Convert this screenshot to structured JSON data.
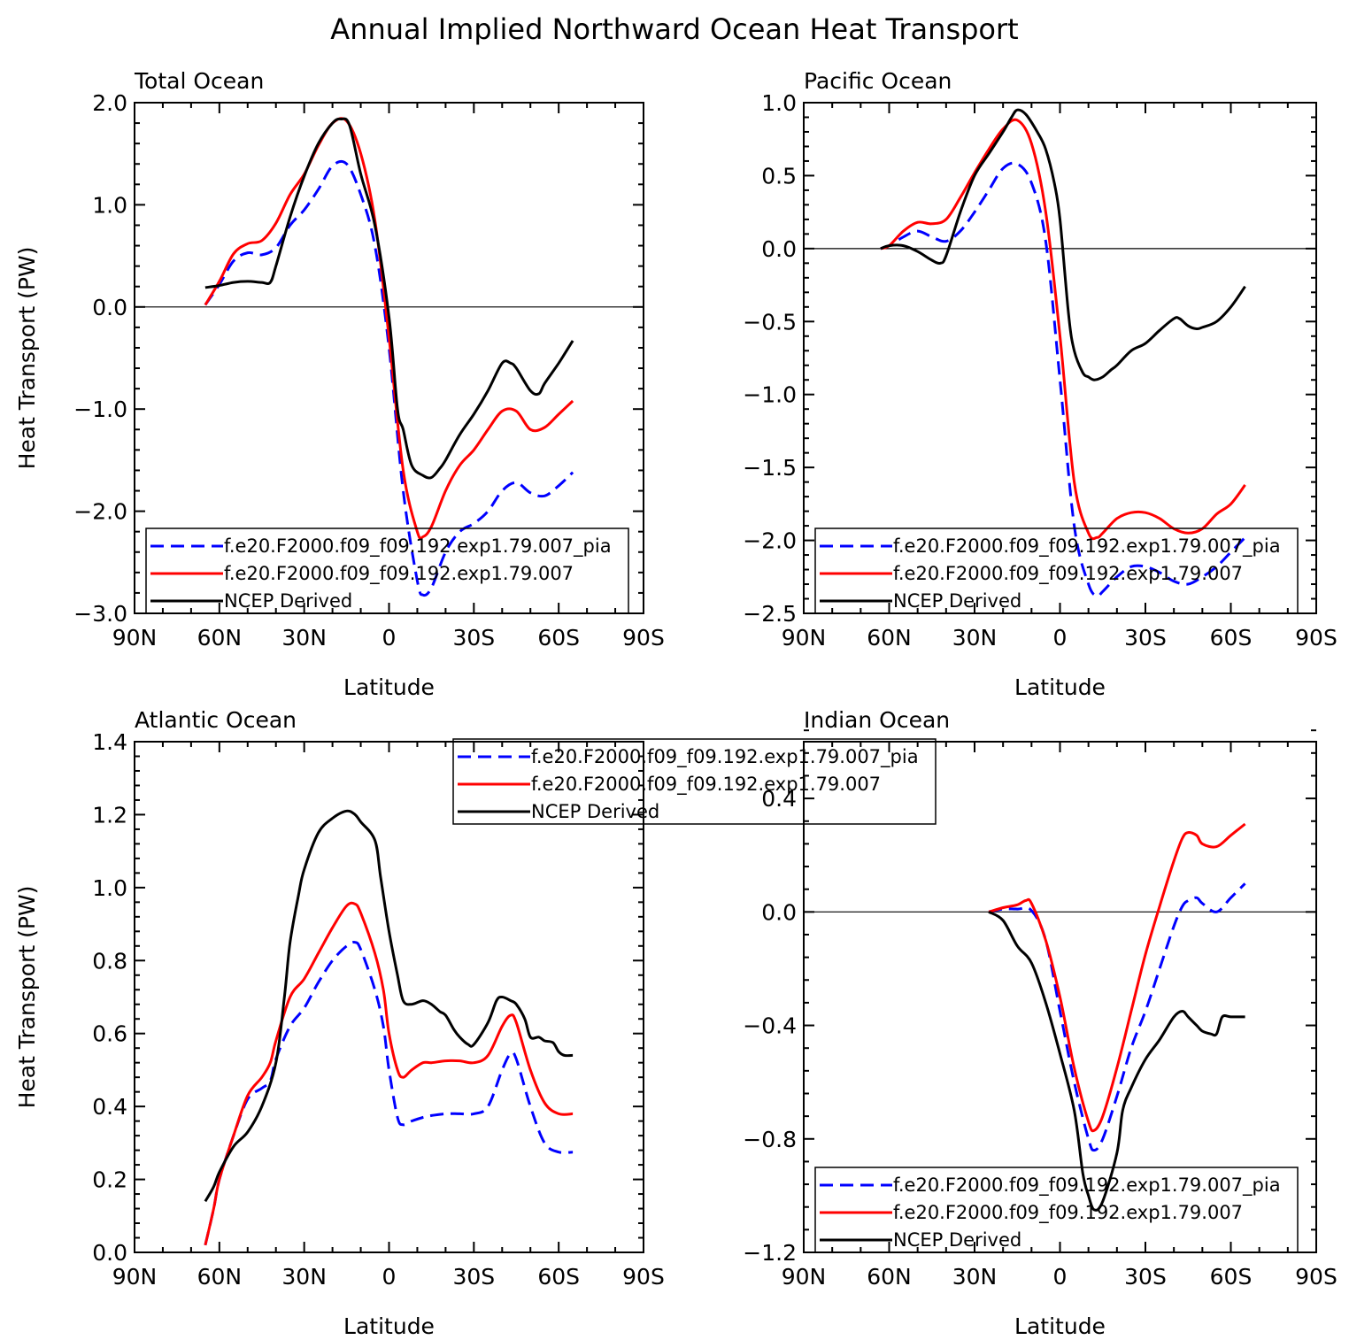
{
  "figure": {
    "title": "Annual Implied Northward Ocean Heat Transport"
  },
  "chart_data": [
    {
      "type": "line",
      "title": "Total Ocean",
      "xlabel": "Latitude",
      "ylabel": "Heat Transport (PW)",
      "xlim": [
        -90,
        90
      ],
      "ylim": [
        -3.0,
        2.0
      ],
      "xticks": [
        -90,
        -60,
        -30,
        0,
        30,
        60,
        90
      ],
      "xtick_labels": [
        "90N",
        "60N",
        "30N",
        "0",
        "30S",
        "60S",
        "90S"
      ],
      "yticks": [
        -3.0,
        -2.0,
        -1.0,
        0.0,
        1.0,
        2.0
      ],
      "ytick_labels": [
        "−3.0",
        "−2.0",
        "−1.0",
        "0.0",
        "1.0",
        "2.0"
      ],
      "legend_position": "bottom-left",
      "series": [
        {
          "name": "f.e20.F2000.f09_f09.192.exp1.79.007_pia",
          "color": "#0000ff",
          "dash": "dashed",
          "x": [
            -65,
            -60,
            -55,
            -50,
            -45,
            -40,
            -35,
            -30,
            -25,
            -20,
            -15,
            -10,
            -5,
            0,
            5,
            10,
            12,
            15,
            20,
            25,
            30,
            35,
            40,
            45,
            50,
            55,
            60,
            65
          ],
          "y": [
            0.02,
            0.22,
            0.45,
            0.53,
            0.51,
            0.58,
            0.8,
            0.95,
            1.15,
            1.38,
            1.4,
            1.1,
            0.6,
            -0.4,
            -1.8,
            -2.68,
            -2.82,
            -2.75,
            -2.4,
            -2.2,
            -2.12,
            -2.0,
            -1.8,
            -1.72,
            -1.82,
            -1.85,
            -1.75,
            -1.62
          ]
        },
        {
          "name": "f.e20.F2000.f09_f09.192.exp1.79.007",
          "color": "#ff0000",
          "dash": "solid",
          "x": [
            -65,
            -60,
            -55,
            -50,
            -45,
            -40,
            -35,
            -30,
            -25,
            -20,
            -15,
            -10,
            -5,
            0,
            5,
            10,
            12,
            15,
            20,
            25,
            30,
            35,
            40,
            45,
            50,
            55,
            60,
            65
          ],
          "y": [
            0.02,
            0.25,
            0.52,
            0.62,
            0.65,
            0.82,
            1.1,
            1.3,
            1.58,
            1.8,
            1.82,
            1.5,
            0.85,
            -0.3,
            -1.6,
            -2.2,
            -2.25,
            -2.15,
            -1.8,
            -1.55,
            -1.4,
            -1.2,
            -1.02,
            -1.02,
            -1.2,
            -1.18,
            -1.05,
            -0.92
          ]
        },
        {
          "name": "NCEP Derived",
          "color": "#000000",
          "dash": "solid",
          "x": [
            -65,
            -60,
            -55,
            -50,
            -45,
            -42,
            -40,
            -35,
            -30,
            -25,
            -20,
            -17,
            -14,
            -10,
            -5,
            0,
            3,
            5,
            8,
            12,
            15,
            18,
            20,
            25,
            30,
            35,
            40,
            43,
            45,
            50,
            53,
            55,
            60,
            65
          ],
          "y": [
            0.19,
            0.21,
            0.24,
            0.25,
            0.24,
            0.24,
            0.4,
            0.88,
            1.28,
            1.6,
            1.8,
            1.84,
            1.78,
            1.3,
            0.8,
            -0.1,
            -1.0,
            -1.2,
            -1.55,
            -1.65,
            -1.67,
            -1.58,
            -1.5,
            -1.25,
            -1.05,
            -0.82,
            -0.55,
            -0.55,
            -0.6,
            -0.82,
            -0.85,
            -0.75,
            -0.55,
            -0.33
          ]
        }
      ]
    },
    {
      "type": "line",
      "title": "Pacific Ocean",
      "xlabel": "Latitude",
      "ylabel": "",
      "xlim": [
        -90,
        90
      ],
      "ylim": [
        -2.5,
        1.0
      ],
      "xticks": [
        -90,
        -60,
        -30,
        0,
        30,
        60,
        90
      ],
      "xtick_labels": [
        "90N",
        "60N",
        "30N",
        "0",
        "30S",
        "60S",
        "90S"
      ],
      "yticks": [
        -2.5,
        -2.0,
        -1.5,
        -1.0,
        -0.5,
        0.0,
        0.5,
        1.0
      ],
      "ytick_labels": [
        "−2.5",
        "−2.0",
        "−1.5",
        "−1.0",
        "−0.5",
        "0.0",
        "0.5",
        "1.0"
      ],
      "legend_position": "bottom-left",
      "series": [
        {
          "name": "f.e20.F2000.f09_f09.192.exp1.79.007_pia",
          "color": "#0000ff",
          "dash": "dashed",
          "x": [
            -63,
            -60,
            -55,
            -50,
            -45,
            -40,
            -35,
            -30,
            -25,
            -20,
            -15,
            -10,
            -5,
            0,
            5,
            10,
            13,
            15,
            20,
            25,
            30,
            35,
            40,
            45,
            50,
            55,
            60,
            65
          ],
          "y": [
            0.0,
            0.02,
            0.08,
            0.12,
            0.08,
            0.05,
            0.12,
            0.25,
            0.4,
            0.55,
            0.58,
            0.45,
            0.05,
            -0.9,
            -1.9,
            -2.3,
            -2.38,
            -2.35,
            -2.25,
            -2.18,
            -2.18,
            -2.22,
            -2.28,
            -2.3,
            -2.25,
            -2.18,
            -2.08,
            -1.98
          ]
        },
        {
          "name": "f.e20.F2000.f09_f09.192.exp1.79.007",
          "color": "#ff0000",
          "dash": "solid",
          "x": [
            -63,
            -60,
            -55,
            -50,
            -45,
            -40,
            -35,
            -30,
            -25,
            -20,
            -15,
            -10,
            -5,
            0,
            5,
            10,
            13,
            15,
            20,
            25,
            30,
            35,
            40,
            45,
            50,
            55,
            60,
            65
          ],
          "y": [
            0.0,
            0.02,
            0.12,
            0.18,
            0.17,
            0.2,
            0.35,
            0.52,
            0.68,
            0.82,
            0.88,
            0.72,
            0.25,
            -0.6,
            -1.6,
            -1.95,
            -1.98,
            -1.95,
            -1.85,
            -1.81,
            -1.81,
            -1.85,
            -1.92,
            -1.95,
            -1.92,
            -1.82,
            -1.75,
            -1.62
          ]
        },
        {
          "name": "NCEP Derived",
          "color": "#000000",
          "dash": "solid",
          "x": [
            -63,
            -60,
            -55,
            -50,
            -45,
            -42,
            -40,
            -35,
            -30,
            -25,
            -20,
            -17,
            -15,
            -12,
            -8,
            -5,
            -2,
            0,
            3,
            5,
            8,
            10,
            12,
            15,
            18,
            20,
            25,
            30,
            35,
            40,
            42,
            45,
            48,
            50,
            55,
            60,
            65
          ],
          "y": [
            0.0,
            0.02,
            0.02,
            -0.02,
            -0.08,
            -0.1,
            -0.05,
            0.25,
            0.5,
            0.65,
            0.8,
            0.9,
            0.95,
            0.92,
            0.8,
            0.68,
            0.45,
            0.2,
            -0.45,
            -0.7,
            -0.85,
            -0.88,
            -0.9,
            -0.88,
            -0.83,
            -0.8,
            -0.7,
            -0.65,
            -0.56,
            -0.48,
            -0.48,
            -0.53,
            -0.55,
            -0.54,
            -0.5,
            -0.4,
            -0.26
          ]
        }
      ]
    },
    {
      "type": "line",
      "title": "Atlantic Ocean",
      "xlabel": "Latitude",
      "ylabel": "Heat Transport (PW)",
      "xlim": [
        -90,
        90
      ],
      "ylim": [
        0.0,
        1.4
      ],
      "xticks": [
        -90,
        -60,
        -30,
        0,
        30,
        60,
        90
      ],
      "xtick_labels": [
        "90N",
        "60N",
        "30N",
        "0",
        "30S",
        "60S",
        "90S"
      ],
      "yticks": [
        0.0,
        0.2,
        0.4,
        0.6,
        0.8,
        1.0,
        1.2,
        1.4
      ],
      "ytick_labels": [
        "0.0",
        "0.2",
        "0.4",
        "0.6",
        "0.8",
        "1.0",
        "1.2",
        "1.4"
      ],
      "legend_position": "top-right",
      "series": [
        {
          "name": "f.e20.F2000.f09_f09.192.exp1.79.007_pia",
          "color": "#0000ff",
          "dash": "dashed",
          "x": [
            -65,
            -62,
            -60,
            -55,
            -50,
            -45,
            -42,
            -40,
            -35,
            -30,
            -25,
            -20,
            -15,
            -12,
            -10,
            -5,
            -2,
            0,
            3,
            5,
            8,
            12,
            15,
            20,
            25,
            30,
            35,
            40,
            43,
            45,
            50,
            55,
            60,
            65
          ],
          "y": [
            0.02,
            0.12,
            0.2,
            0.32,
            0.42,
            0.45,
            0.47,
            0.53,
            0.62,
            0.67,
            0.74,
            0.8,
            0.84,
            0.85,
            0.83,
            0.72,
            0.62,
            0.5,
            0.37,
            0.35,
            0.36,
            0.37,
            0.375,
            0.38,
            0.38,
            0.38,
            0.4,
            0.5,
            0.545,
            0.53,
            0.4,
            0.3,
            0.275,
            0.275
          ]
        },
        {
          "name": "f.e20.F2000.f09_f09.192.exp1.79.007",
          "color": "#ff0000",
          "dash": "solid",
          "x": [
            -65,
            -62,
            -60,
            -55,
            -50,
            -45,
            -42,
            -40,
            -35,
            -30,
            -25,
            -20,
            -15,
            -12,
            -10,
            -5,
            -2,
            0,
            3,
            5,
            8,
            12,
            15,
            20,
            25,
            30,
            35,
            40,
            43,
            45,
            50,
            55,
            60,
            65
          ],
          "y": [
            0.02,
            0.12,
            0.2,
            0.32,
            0.43,
            0.48,
            0.52,
            0.58,
            0.7,
            0.75,
            0.82,
            0.89,
            0.95,
            0.955,
            0.93,
            0.82,
            0.72,
            0.6,
            0.5,
            0.48,
            0.5,
            0.52,
            0.52,
            0.525,
            0.525,
            0.52,
            0.54,
            0.62,
            0.65,
            0.63,
            0.5,
            0.41,
            0.38,
            0.38
          ]
        },
        {
          "name": "NCEP Derived",
          "color": "#000000",
          "dash": "solid",
          "x": [
            -65,
            -62,
            -60,
            -55,
            -50,
            -45,
            -40,
            -37,
            -35,
            -32,
            -30,
            -25,
            -20,
            -15,
            -12,
            -10,
            -5,
            -3,
            0,
            3,
            5,
            8,
            12,
            15,
            18,
            20,
            23,
            25,
            28,
            30,
            35,
            38,
            40,
            43,
            45,
            48,
            50,
            53,
            55,
            58,
            60,
            62,
            65
          ],
          "y": [
            0.14,
            0.18,
            0.22,
            0.29,
            0.33,
            0.4,
            0.52,
            0.7,
            0.85,
            0.98,
            1.05,
            1.15,
            1.19,
            1.21,
            1.2,
            1.18,
            1.13,
            1.03,
            0.88,
            0.76,
            0.69,
            0.68,
            0.69,
            0.68,
            0.66,
            0.65,
            0.61,
            0.59,
            0.57,
            0.57,
            0.63,
            0.69,
            0.7,
            0.69,
            0.68,
            0.64,
            0.59,
            0.59,
            0.58,
            0.575,
            0.55,
            0.54,
            0.54
          ]
        }
      ]
    },
    {
      "type": "line",
      "title": "Indian Ocean",
      "xlabel": "Latitude",
      "ylabel": "",
      "xlim": [
        -90,
        90
      ],
      "ylim": [
        -1.2,
        0.6
      ],
      "xticks": [
        -90,
        -60,
        -30,
        0,
        30,
        60,
        90
      ],
      "xtick_labels": [
        "90N",
        "60N",
        "30N",
        "0",
        "30S",
        "60S",
        "90S"
      ],
      "yticks": [
        -1.2,
        -0.8,
        -0.4,
        0.0,
        0.4
      ],
      "ytick_labels": [
        "−1.2",
        "−0.8",
        "−0.4",
        "0.0",
        "0.4"
      ],
      "legend_position": "bottom-left",
      "series": [
        {
          "name": "f.e20.F2000.f09_f09.192.exp1.79.007_pia",
          "color": "#0000ff",
          "dash": "dashed",
          "x": [
            -25,
            -20,
            -15,
            -10,
            -5,
            0,
            5,
            10,
            12,
            15,
            20,
            25,
            30,
            35,
            40,
            43,
            45,
            48,
            50,
            55,
            60,
            65
          ],
          "y": [
            0.0,
            0.01,
            0.01,
            0.005,
            -0.1,
            -0.35,
            -0.6,
            -0.8,
            -0.84,
            -0.8,
            -0.65,
            -0.48,
            -0.35,
            -0.2,
            -0.05,
            0.02,
            0.04,
            0.05,
            0.03,
            0.0,
            0.05,
            0.1
          ]
        },
        {
          "name": "f.e20.F2000.f09_f09.192.exp1.79.007",
          "color": "#ff0000",
          "dash": "solid",
          "x": [
            -25,
            -20,
            -15,
            -12,
            -10,
            -5,
            0,
            5,
            10,
            12,
            15,
            20,
            25,
            30,
            35,
            40,
            43,
            45,
            48,
            50,
            55,
            60,
            65
          ],
          "y": [
            0.0,
            0.015,
            0.025,
            0.04,
            0.03,
            -0.1,
            -0.3,
            -0.55,
            -0.74,
            -0.77,
            -0.72,
            -0.55,
            -0.35,
            -0.15,
            0.02,
            0.18,
            0.26,
            0.28,
            0.27,
            0.24,
            0.23,
            0.27,
            0.31
          ]
        },
        {
          "name": "NCEP Derived",
          "color": "#000000",
          "dash": "solid",
          "x": [
            -25,
            -20,
            -15,
            -10,
            -5,
            0,
            5,
            8,
            10,
            12,
            15,
            20,
            22,
            25,
            30,
            35,
            40,
            43,
            45,
            48,
            50,
            53,
            55,
            57,
            60,
            65
          ],
          "y": [
            0.0,
            -0.03,
            -0.12,
            -0.18,
            -0.32,
            -0.5,
            -0.7,
            -0.92,
            -1.0,
            -1.05,
            -1.02,
            -0.85,
            -0.7,
            -0.62,
            -0.52,
            -0.45,
            -0.37,
            -0.35,
            -0.37,
            -0.4,
            -0.42,
            -0.43,
            -0.43,
            -0.37,
            -0.37,
            -0.37
          ]
        }
      ]
    }
  ]
}
